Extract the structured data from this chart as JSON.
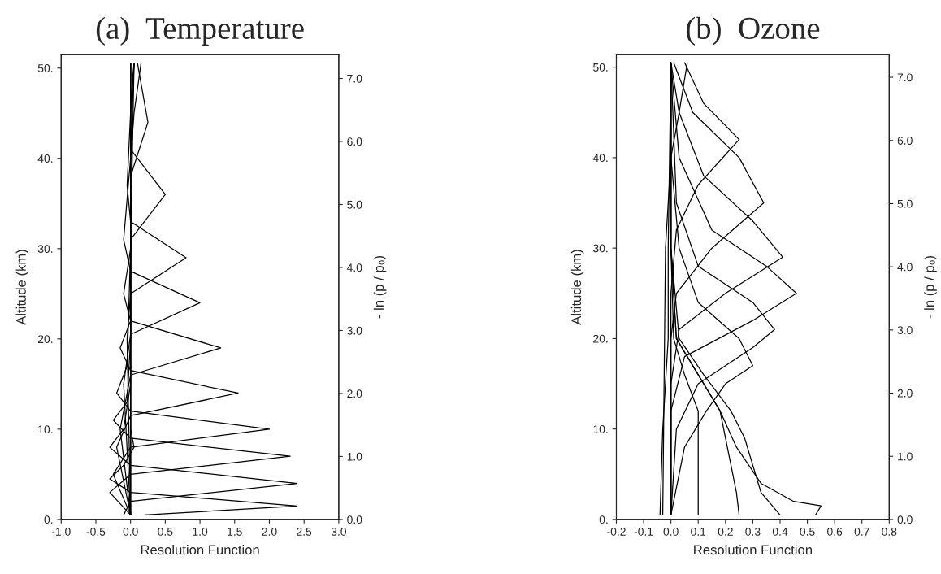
{
  "chart_data": [
    {
      "type": "line",
      "title": "(a)  Temperature",
      "xlabel": "Resolution Function",
      "ylabel": "Altitude (km)",
      "y2label": "- ln (p / p₀)",
      "xlim": [
        -1.0,
        3.0
      ],
      "xticks": [
        {
          "value": -1.0,
          "label": "-1.0"
        },
        {
          "value": -0.5,
          "label": "-0.5"
        },
        {
          "value": 0.0,
          "label": "0.0"
        },
        {
          "value": 0.5,
          "label": "0.5"
        },
        {
          "value": 1.0,
          "label": "1.0"
        },
        {
          "value": 1.5,
          "label": "1.5"
        },
        {
          "value": 2.0,
          "label": "2.0"
        },
        {
          "value": 2.5,
          "label": "2.5"
        },
        {
          "value": 3.0,
          "label": "3.0"
        }
      ],
      "ylim": [
        0,
        51.5
      ],
      "yticks": [
        {
          "value": 0,
          "label": "0."
        },
        {
          "value": 10,
          "label": "10."
        },
        {
          "value": 20,
          "label": "20."
        },
        {
          "value": 30,
          "label": "30."
        },
        {
          "value": 40,
          "label": "40."
        },
        {
          "value": 50,
          "label": "50."
        }
      ],
      "y2lim": [
        0,
        7.38
      ],
      "y2ticks": [
        {
          "value": 0,
          "label": "0.0"
        },
        {
          "value": 1,
          "label": "1.0"
        },
        {
          "value": 2,
          "label": "2.0"
        },
        {
          "value": 3,
          "label": "3.0"
        },
        {
          "value": 4,
          "label": "4.0"
        },
        {
          "value": 5,
          "label": "5.0"
        },
        {
          "value": 6,
          "label": "6.0"
        },
        {
          "value": 7,
          "label": "7.0"
        }
      ],
      "grid": false,
      "series": [
        {
          "color": "#000000",
          "x": [
            0.2,
            2.4,
            0.0,
            -0.3,
            -0.1,
            0.05,
            0,
            0,
            0,
            0
          ],
          "values": [
            0.5,
            1.5,
            3,
            4.5,
            6,
            8,
            10,
            15,
            25,
            50.5
          ]
        },
        {
          "color": "#000000",
          "x": [
            -0.1,
            0,
            2.4,
            0,
            -0.3,
            -0.1,
            0,
            0,
            0
          ],
          "values": [
            0.5,
            2,
            4,
            6,
            8,
            10,
            15,
            30,
            50.5
          ]
        },
        {
          "color": "#000000",
          "x": [
            0,
            -0.3,
            0,
            2.3,
            0,
            -0.25,
            -0.05,
            0,
            0
          ],
          "values": [
            0.5,
            3,
            5,
            7,
            9,
            11,
            13,
            20,
            50.5
          ]
        },
        {
          "color": "#000000",
          "x": [
            0,
            -0.25,
            0,
            2.0,
            0,
            -0.2,
            -0.05,
            0,
            0
          ],
          "values": [
            0.5,
            5,
            8,
            10,
            12,
            14,
            17,
            30,
            50.5
          ]
        },
        {
          "color": "#000000",
          "x": [
            0,
            -0.2,
            0,
            1.55,
            0,
            -0.15,
            0,
            0,
            0
          ],
          "values": [
            0.5,
            8,
            11.5,
            14,
            16.5,
            19,
            22,
            35,
            50.5
          ]
        },
        {
          "color": "#000000",
          "x": [
            0,
            -0.15,
            0,
            1.3,
            0,
            -0.1,
            0,
            0.05
          ],
          "values": [
            0.5,
            10,
            16,
            19,
            22,
            25,
            30,
            50.5
          ]
        },
        {
          "color": "#000000",
          "x": [
            0,
            -0.1,
            0,
            1.0,
            0,
            -0.1,
            0,
            0.05
          ],
          "values": [
            0.5,
            15,
            20.5,
            24,
            27.5,
            31,
            40,
            50.5
          ]
        },
        {
          "color": "#000000",
          "x": [
            0,
            -0.05,
            0,
            0.8,
            0,
            -0.05,
            0,
            0.05
          ],
          "values": [
            0.5,
            20,
            25,
            29,
            33,
            37,
            45,
            50.5
          ]
        },
        {
          "color": "#000000",
          "x": [
            0,
            0,
            0,
            0.5,
            0,
            0,
            0.05
          ],
          "values": [
            0.5,
            25,
            31,
            36,
            41,
            46,
            50.5
          ]
        },
        {
          "color": "#000000",
          "x": [
            0,
            0,
            0,
            0.25,
            0.1
          ],
          "values": [
            0.5,
            30,
            38,
            44,
            50.5
          ]
        },
        {
          "color": "#000000",
          "x": [
            0,
            0,
            0.05,
            0.15
          ],
          "values": [
            0.5,
            40,
            45,
            50.5
          ]
        }
      ]
    },
    {
      "type": "line",
      "title": "(b)  Ozone",
      "xlabel": "Resolution Function",
      "ylabel": "Altitude (km)",
      "y2label": "- ln (p / p₀)",
      "xlim": [
        -0.2,
        0.8
      ],
      "xticks": [
        {
          "value": -0.2,
          "label": "-0.2"
        },
        {
          "value": -0.1,
          "label": "-0.1"
        },
        {
          "value": 0.0,
          "label": "0.0"
        },
        {
          "value": 0.1,
          "label": "0.1"
        },
        {
          "value": 0.2,
          "label": "0.2"
        },
        {
          "value": 0.3,
          "label": "0.3"
        },
        {
          "value": 0.4,
          "label": "0.4"
        },
        {
          "value": 0.5,
          "label": "0.5"
        },
        {
          "value": 0.6,
          "label": "0.6"
        },
        {
          "value": 0.7,
          "label": "0.7"
        },
        {
          "value": 0.8,
          "label": "0.8"
        }
      ],
      "ylim": [
        0,
        51.4
      ],
      "yticks": [
        {
          "value": 0,
          "label": "0."
        },
        {
          "value": 10,
          "label": "10."
        },
        {
          "value": 20,
          "label": "20."
        },
        {
          "value": 30,
          "label": "30."
        },
        {
          "value": 40,
          "label": "40."
        },
        {
          "value": 50,
          "label": "50."
        }
      ],
      "y2lim": [
        0,
        7.36
      ],
      "y2ticks": [
        {
          "value": 0,
          "label": "0.0"
        },
        {
          "value": 1,
          "label": "1.0"
        },
        {
          "value": 2,
          "label": "2.0"
        },
        {
          "value": 3,
          "label": "3.0"
        },
        {
          "value": 4,
          "label": "4.0"
        },
        {
          "value": 5,
          "label": "5.0"
        },
        {
          "value": 6,
          "label": "6.0"
        },
        {
          "value": 7,
          "label": "7.0"
        }
      ],
      "grid": false,
      "series": [
        {
          "color": "#000000",
          "x": [
            0.53,
            0.55,
            0.45,
            0.33,
            0.24,
            0.18,
            0.02,
            0,
            0
          ],
          "values": [
            0.5,
            1.5,
            2,
            4,
            8,
            12,
            20,
            30,
            50.5
          ]
        },
        {
          "color": "#000000",
          "x": [
            0.4,
            0.33,
            0.3,
            0.27,
            0.22,
            0.12,
            0.03,
            0,
            0
          ],
          "values": [
            0.5,
            3,
            6,
            9,
            12,
            16,
            20,
            30,
            50.5
          ]
        },
        {
          "color": "#000000",
          "x": [
            0.25,
            0.24,
            0.22,
            0.2,
            0.18,
            0.1,
            0.02,
            0,
            0
          ],
          "values": [
            0.5,
            3,
            6,
            9,
            12,
            16,
            20,
            30,
            50.5
          ]
        },
        {
          "color": "#000000",
          "x": [
            0.1,
            0.1,
            0.1,
            0.1,
            0.1,
            0.05,
            0.01,
            0,
            0
          ],
          "values": [
            0.5,
            3,
            6,
            9,
            12,
            16,
            20,
            30,
            50.5
          ]
        },
        {
          "color": "#000000",
          "x": [
            0,
            0.05,
            0.13,
            0.2,
            0.3,
            0.25,
            0.1,
            0.03,
            0,
            0
          ],
          "values": [
            0.5,
            8,
            12,
            15,
            17,
            20,
            24,
            30,
            40,
            50.5
          ]
        },
        {
          "color": "#000000",
          "x": [
            0,
            0.02,
            0.1,
            0.3,
            0.38,
            0.3,
            0.1,
            0.02,
            0
          ],
          "values": [
            0.5,
            10,
            15,
            19,
            21,
            24,
            28,
            35,
            50.5
          ]
        },
        {
          "color": "#000000",
          "x": [
            0,
            0,
            0.05,
            0.3,
            0.46,
            0.35,
            0.15,
            0.03,
            0
          ],
          "values": [
            0.5,
            12,
            18,
            22,
            25,
            28,
            32,
            40,
            50.5
          ]
        },
        {
          "color": "#000000",
          "x": [
            0,
            0,
            0.03,
            0.2,
            0.41,
            0.3,
            0.12,
            0.03,
            0
          ],
          "values": [
            0.5,
            15,
            21,
            25,
            29,
            33,
            38,
            45,
            50.5
          ]
        },
        {
          "color": "#000000",
          "x": [
            0,
            0,
            0.02,
            0.15,
            0.34,
            0.25,
            0.08,
            0.01
          ],
          "values": [
            0.5,
            20,
            25,
            30,
            35,
            40,
            45,
            50.5
          ]
        },
        {
          "color": "#000000",
          "x": [
            0,
            0,
            0.02,
            0.1,
            0.25,
            0.12,
            0.05
          ],
          "values": [
            0.5,
            25,
            32,
            37,
            42,
            46,
            50.5
          ]
        },
        {
          "color": "#000000",
          "x": [
            -0.03,
            -0.02,
            0,
            0.03,
            0.06
          ],
          "values": [
            0.5,
            30,
            40,
            45,
            50.5
          ]
        },
        {
          "color": "#000000",
          "x": [
            -0.04,
            -0.03,
            -0.01,
            -0.01,
            0
          ],
          "values": [
            0.5,
            10,
            20,
            30,
            50.5
          ]
        }
      ]
    }
  ]
}
